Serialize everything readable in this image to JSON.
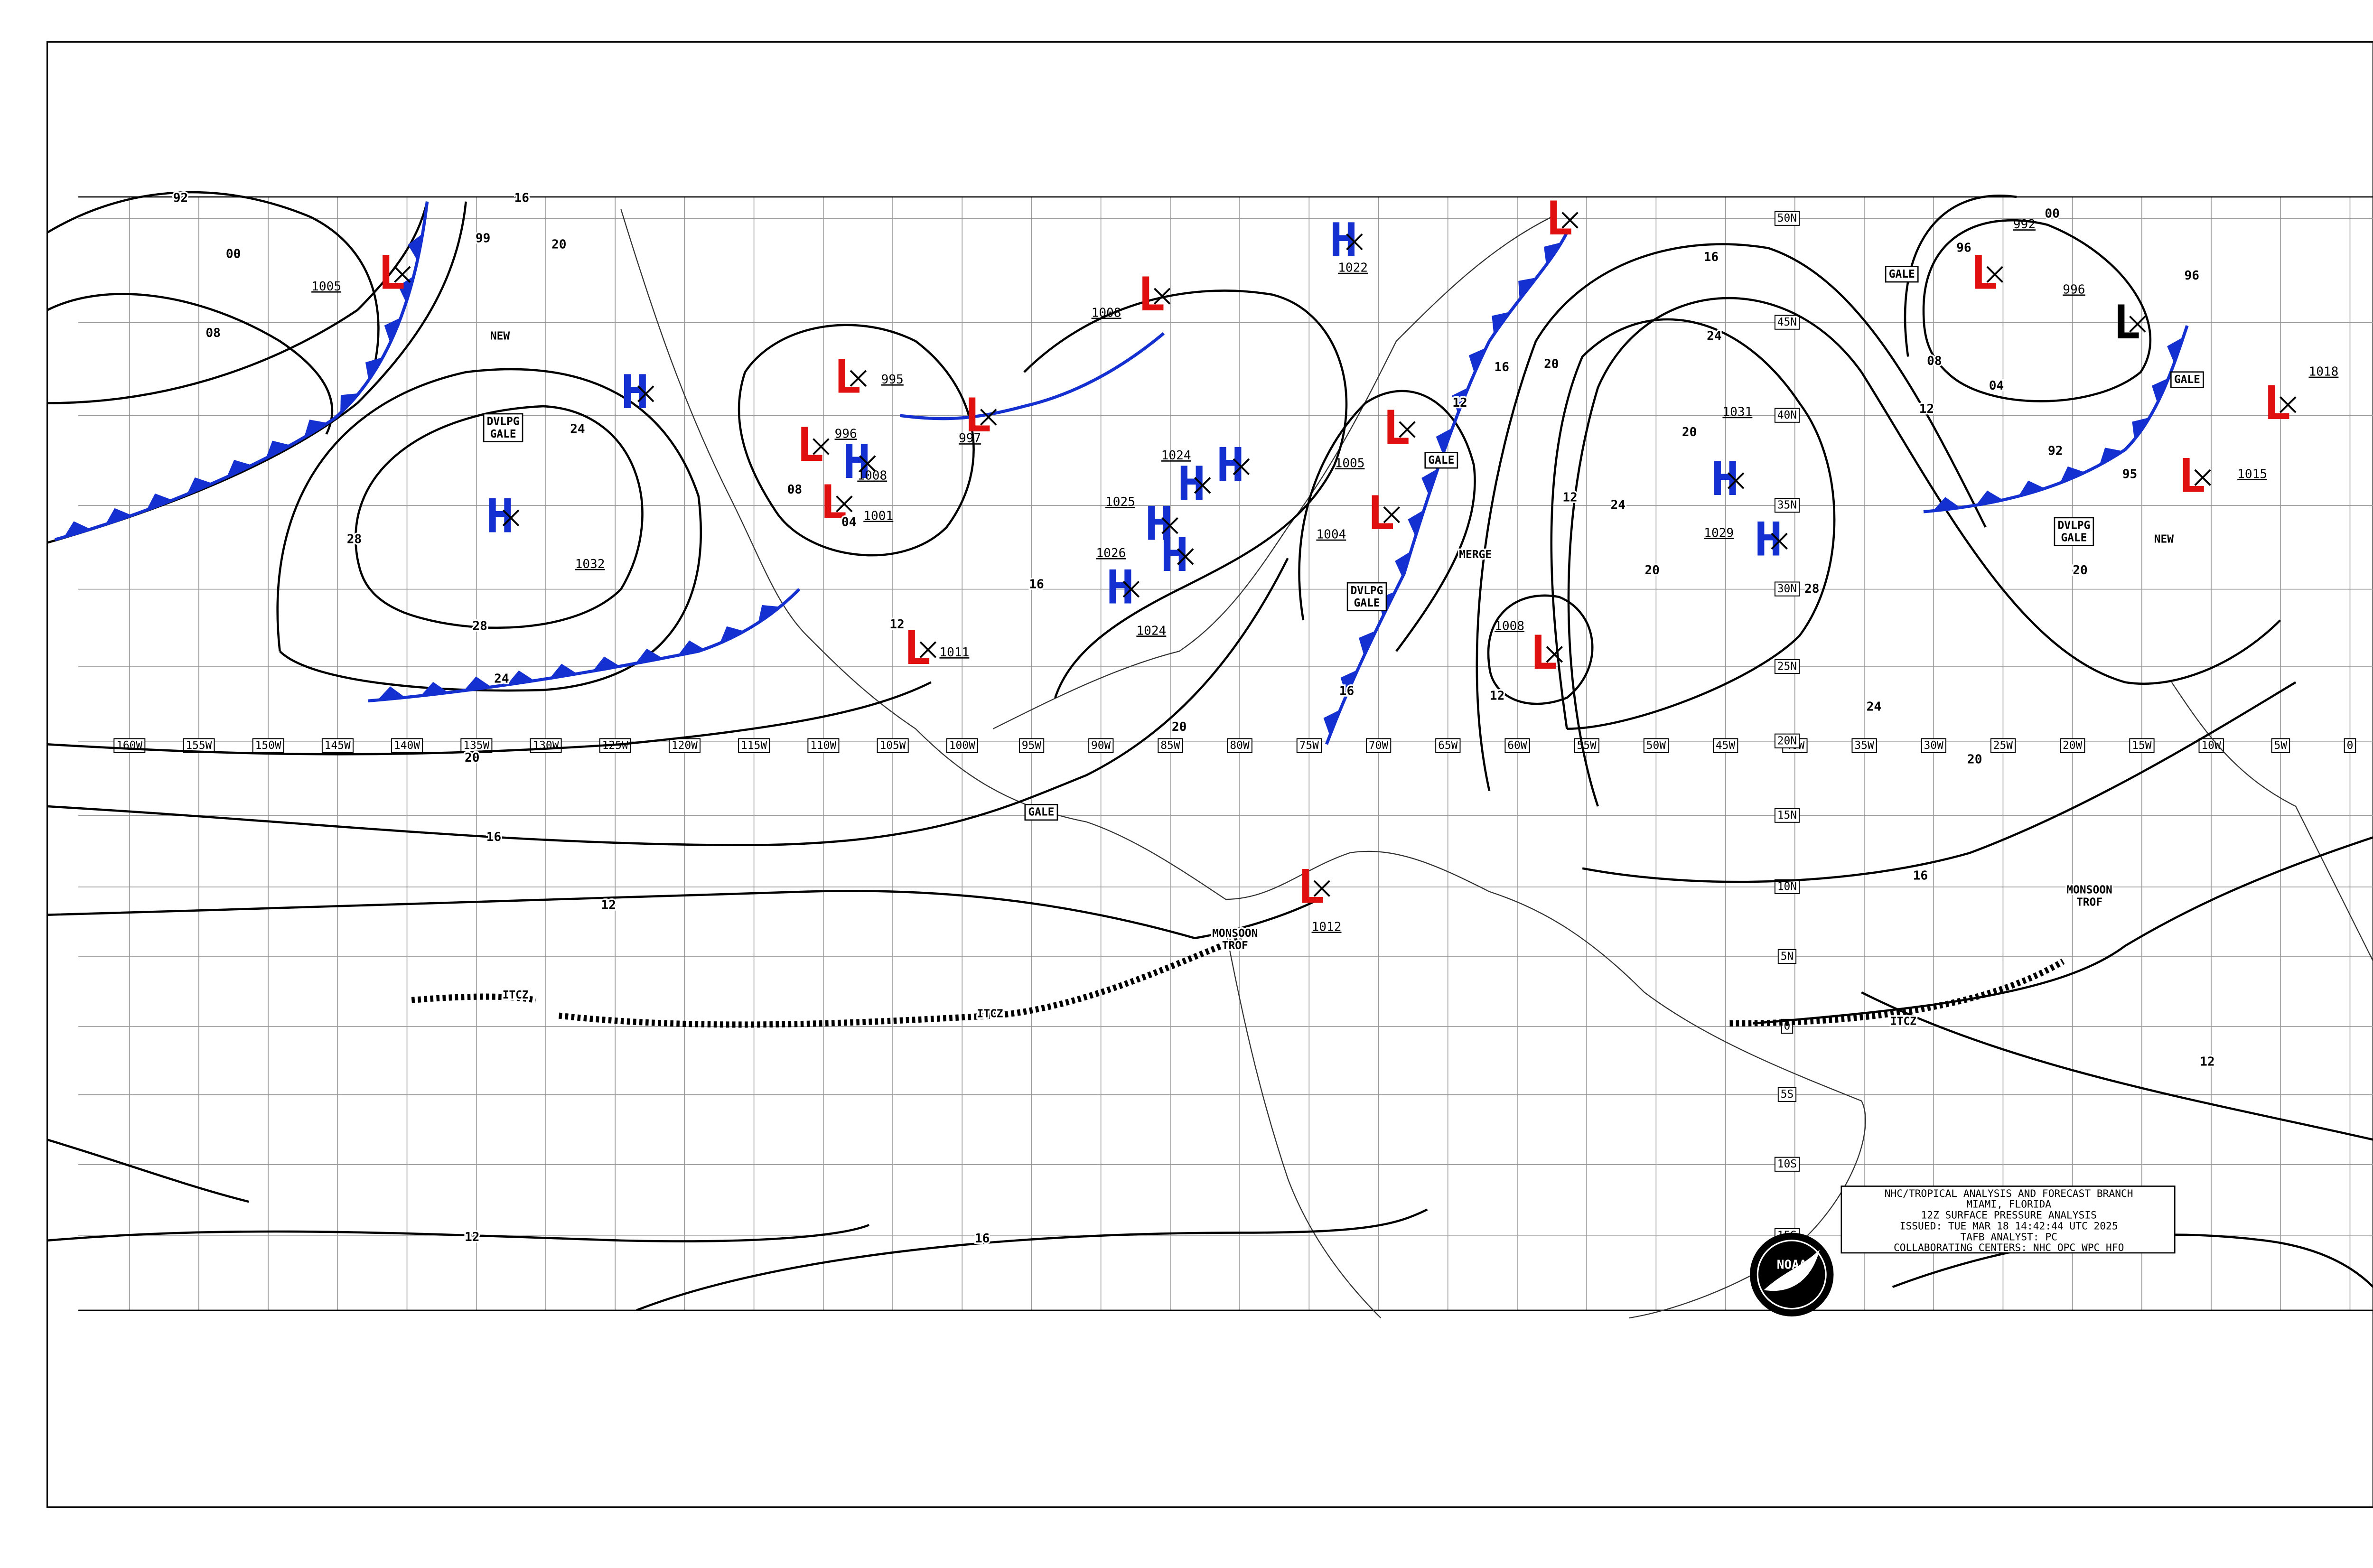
{
  "longitude_labels": [
    "160W",
    "155W",
    "150W",
    "145W",
    "140W",
    "135W",
    "130W",
    "125W",
    "120W",
    "115W",
    "110W",
    "105W",
    "100W",
    "95W",
    "90W",
    "85W",
    "80W",
    "75W",
    "70W",
    "65W",
    "60W",
    "55W",
    "50W",
    "45W",
    "40W",
    "35W",
    "30W",
    "25W",
    "20W",
    "15W",
    "10W",
    "5W",
    "0"
  ],
  "latitude_labels": [
    "50N",
    "45N",
    "40N",
    "35N",
    "30N",
    "25N",
    "20N",
    "15N",
    "10N",
    "5N",
    "0",
    "5S",
    "10S",
    "15S"
  ],
  "pressure_centers": [
    {
      "symbol": "H",
      "pressure": "1032",
      "color": "#1530d0"
    },
    {
      "symbol": "H",
      "color": "#1530d0"
    },
    {
      "symbol": "L",
      "pressure": "1005",
      "color": "#e01010"
    },
    {
      "symbol": "L",
      "pressure": "995",
      "color": "#e01010"
    },
    {
      "symbol": "L",
      "pressure": "996",
      "color": "#e01010"
    },
    {
      "symbol": "L",
      "pressure": "1001",
      "color": "#e01010"
    },
    {
      "symbol": "H",
      "pressure": "1008",
      "color": "#1530d0"
    },
    {
      "symbol": "L",
      "pressure": "997",
      "color": "#e01010"
    },
    {
      "symbol": "L",
      "pressure": "1011",
      "color": "#e01010"
    },
    {
      "symbol": "L",
      "pressure": "1008",
      "color": "#e01010"
    },
    {
      "symbol": "H",
      "pressure": "1022",
      "color": "#1530d0"
    },
    {
      "symbol": "H",
      "pressure": "1024",
      "color": "#1530d0"
    },
    {
      "symbol": "H",
      "color": "#1530d0"
    },
    {
      "symbol": "H",
      "pressure": "1025",
      "color": "#1530d0"
    },
    {
      "symbol": "H",
      "pressure": "1026",
      "color": "#1530d0"
    },
    {
      "symbol": "H",
      "pressure": "1024",
      "color": "#1530d0"
    },
    {
      "symbol": "L",
      "pressure": "1005",
      "color": "#e01010"
    },
    {
      "symbol": "L",
      "pressure": "1004",
      "color": "#e01010"
    },
    {
      "symbol": "L",
      "pressure": "1008",
      "color": "#e01010"
    },
    {
      "symbol": "H",
      "pressure": "1031",
      "color": "#1530d0"
    },
    {
      "symbol": "H",
      "pressure": "1029",
      "color": "#1530d0"
    },
    {
      "symbol": "L",
      "pressure": "992",
      "color": "#e01010"
    },
    {
      "symbol": "L",
      "pressure": "996",
      "color": "#000000"
    },
    {
      "symbol": "L",
      "pressure": "1018",
      "color": "#e01010"
    },
    {
      "symbol": "L",
      "pressure": "1015",
      "color": "#e01010"
    },
    {
      "symbol": "L",
      "pressure": "1012",
      "color": "#e01010"
    },
    {
      "symbol": "L",
      "color": "#e01010"
    }
  ],
  "isobar_labels": [
    "92",
    "00",
    "08",
    "16",
    "99",
    "20",
    "24",
    "28",
    "28",
    "24",
    "20",
    "16",
    "12",
    "12",
    "16",
    "12",
    "16",
    "20",
    "24",
    "28",
    "20",
    "24",
    "20",
    "16",
    "12",
    "16",
    "24",
    "20",
    "04",
    "00",
    "96",
    "08",
    "12",
    "92",
    "95",
    "96",
    "20",
    "16",
    "12",
    "12",
    "04",
    "08",
    "12",
    "16",
    "20"
  ],
  "annotations": [
    "NEW",
    "DVLPG GALE",
    "GALE",
    "DVLPG GALE",
    "MERGE",
    "GALE",
    "GALE",
    "GALE",
    "DVLPG GALE",
    "NEW",
    "MONSOON TROF",
    "MONSOON TROF",
    "ITCZ",
    "ITCZ",
    "ITCZ"
  ],
  "info_box": [
    "NHC/TROPICAL ANALYSIS AND FORECAST BRANCH",
    "MIAMI, FLORIDA",
    "12Z SURFACE PRESSURE ANALYSIS",
    "ISSUED: TUE MAR 18 14:42:44 UTC 2025",
    "TAFB ANALYST: PC",
    "COLLABORATING CENTERS: NHC OPC WPC HFO"
  ],
  "logo": "NOAA"
}
